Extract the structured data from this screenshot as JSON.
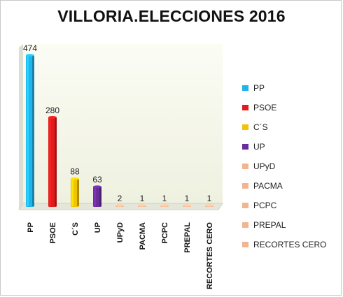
{
  "chart_data": {
    "type": "bar",
    "title": "VILLORIA.ELECCIONES 2016",
    "xlabel": "",
    "ylabel": "",
    "ylim": [
      0,
      500
    ],
    "grid": false,
    "legend_position": "right",
    "categories": [
      "PP",
      "PSOE",
      "C´S",
      "UP",
      "UPyD",
      "PACMA",
      "PCPC",
      "PREPAL",
      "RECORTES CERO"
    ],
    "values": [
      474,
      280,
      88,
      63,
      2,
      1,
      1,
      1,
      1
    ],
    "data_labels": [
      "474",
      "280",
      "88",
      "63",
      "2",
      "1",
      "1",
      "1",
      "1"
    ],
    "colors": [
      "#1fb4ee",
      "#e21b1b",
      "#f2c300",
      "#6a2d9c",
      "#f2b592",
      "#f2b592",
      "#f2b592",
      "#f2b592",
      "#f2b592"
    ],
    "legend": [
      "PP",
      "PSOE",
      "C´S",
      "UP",
      "UPyD",
      "PACMA",
      "PCPC",
      "PREPAL",
      "RECORTES CERO"
    ]
  }
}
